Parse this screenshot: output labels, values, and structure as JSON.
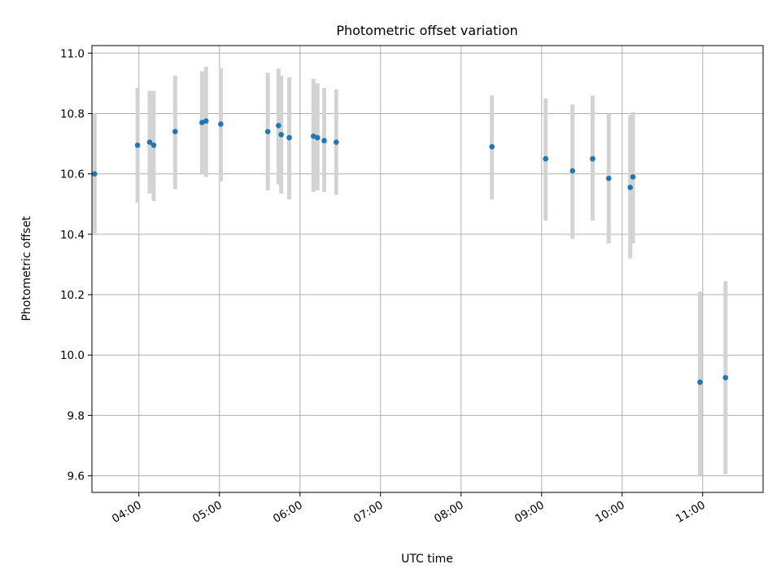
{
  "chart_data": {
    "type": "scatter",
    "title": "Photometric offset variation",
    "xlabel": "UTC time",
    "ylabel": "Photometric offset",
    "xlim": [
      "03:25",
      "11:45"
    ],
    "ylim": [
      9.545,
      10.025
    ],
    "grid": true,
    "legend": "none",
    "xticks": [
      "04:00",
      "05:00",
      "06:00",
      "07:00",
      "08:00",
      "09:00",
      "10:00",
      "11:00"
    ],
    "yticks": [
      "9.6",
      "9.8",
      "10.0",
      "10.2",
      "10.4",
      "10.6",
      "10.8",
      "11.0"
    ],
    "colors": {
      "point": "#1f77b4",
      "errorbar": "#d3d3d3",
      "grid": "#b0b0b0"
    },
    "series": [
      {
        "points": [
          {
            "x": "03:27",
            "y": 10.6,
            "lo": 10.4,
            "hi": 10.8
          },
          {
            "x": "03:59",
            "y": 10.695,
            "lo": 10.505,
            "hi": 10.885
          },
          {
            "x": "04:08",
            "y": 10.705,
            "lo": 10.535,
            "hi": 10.875
          },
          {
            "x": "04:11",
            "y": 10.695,
            "lo": 10.51,
            "hi": 10.875
          },
          {
            "x": "04:27",
            "y": 10.74,
            "lo": 10.55,
            "hi": 10.925
          },
          {
            "x": "04:47",
            "y": 10.77,
            "lo": 10.6,
            "hi": 10.94
          },
          {
            "x": "04:50",
            "y": 10.775,
            "lo": 10.59,
            "hi": 10.955
          },
          {
            "x": "05:01",
            "y": 10.765,
            "lo": 10.575,
            "hi": 10.95
          },
          {
            "x": "05:36",
            "y": 10.74,
            "lo": 10.545,
            "hi": 10.935
          },
          {
            "x": "05:44",
            "y": 10.76,
            "lo": 10.565,
            "hi": 10.95
          },
          {
            "x": "05:46",
            "y": 10.73,
            "lo": 10.535,
            "hi": 10.925
          },
          {
            "x": "05:52",
            "y": 10.72,
            "lo": 10.515,
            "hi": 10.92
          },
          {
            "x": "06:10",
            "y": 10.725,
            "lo": 10.54,
            "hi": 10.915
          },
          {
            "x": "06:13",
            "y": 10.72,
            "lo": 10.545,
            "hi": 10.9
          },
          {
            "x": "06:18",
            "y": 10.71,
            "lo": 10.54,
            "hi": 10.885
          },
          {
            "x": "06:27",
            "y": 10.705,
            "lo": 10.53,
            "hi": 10.88
          },
          {
            "x": "08:23",
            "y": 10.69,
            "lo": 10.515,
            "hi": 10.86
          },
          {
            "x": "09:03",
            "y": 10.65,
            "lo": 10.445,
            "hi": 10.85
          },
          {
            "x": "09:23",
            "y": 10.61,
            "lo": 10.385,
            "hi": 10.83
          },
          {
            "x": "09:38",
            "y": 10.65,
            "lo": 10.445,
            "hi": 10.86
          },
          {
            "x": "09:50",
            "y": 10.585,
            "lo": 10.37,
            "hi": 10.8
          },
          {
            "x": "10:06",
            "y": 10.555,
            "lo": 10.32,
            "hi": 10.795
          },
          {
            "x": "10:08",
            "y": 10.59,
            "lo": 10.37,
            "hi": 10.805
          },
          {
            "x": "10:58",
            "y": 9.91,
            "lo": 9.6,
            "hi": 10.21
          },
          {
            "x": "11:17",
            "y": 9.925,
            "lo": 9.605,
            "hi": 10.245
          }
        ]
      }
    ]
  }
}
